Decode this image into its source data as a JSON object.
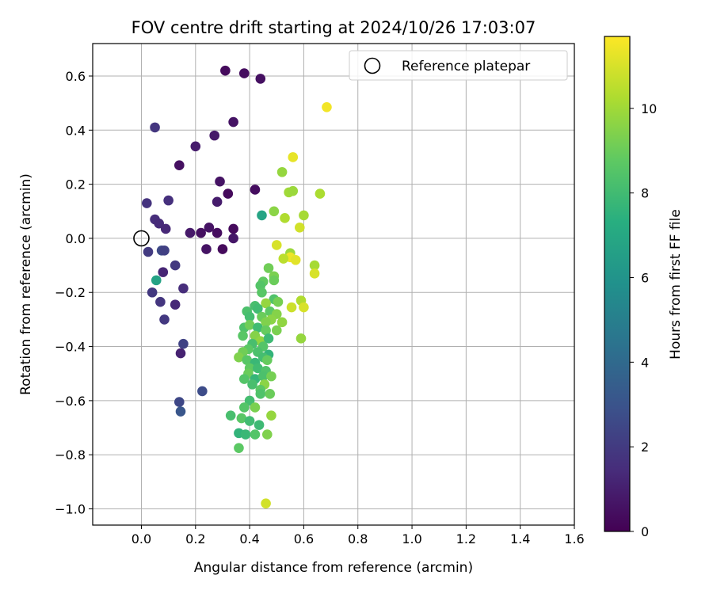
{
  "chart_data": {
    "type": "scatter",
    "title": "FOV centre drift starting at 2024/10/26 17:03:07",
    "xlabel": "Angular distance from reference (arcmin)",
    "ylabel": "Rotation from reference (arcmin)",
    "xlim": [
      -0.18,
      1.6
    ],
    "ylim": [
      -1.06,
      0.72
    ],
    "xticks": [
      "0.0",
      "0.2",
      "0.4",
      "0.6",
      "0.8",
      "1.0",
      "1.2",
      "1.4",
      "1.6"
    ],
    "xtick_values": [
      0,
      0.2,
      0.4,
      0.6,
      0.8,
      1.0,
      1.2,
      1.4,
      1.6
    ],
    "yticks": [
      "−1.0",
      "−0.8",
      "−0.6",
      "−0.4",
      "−0.2",
      "0.0",
      "0.2",
      "0.4",
      "0.6"
    ],
    "ytick_values": [
      -1.0,
      -0.8,
      -0.6,
      -0.4,
      -0.2,
      0.0,
      0.2,
      0.4,
      0.6
    ],
    "grid": true,
    "legend": {
      "placement": "top-right",
      "entries": [
        "Reference platepar"
      ]
    },
    "reference_point": {
      "x": 0,
      "y": 0
    },
    "colorbar": {
      "label": "Hours from first FF file",
      "colormap": "viridis",
      "range": [
        0,
        11.7
      ],
      "ticks": [
        "0",
        "2",
        "4",
        "6",
        "8",
        "10"
      ],
      "tick_values": [
        0,
        2,
        4,
        6,
        8,
        10
      ]
    },
    "points": [
      {
        "x": 0.31,
        "y": 0.62,
        "h": 0.3
      },
      {
        "x": 0.38,
        "y": 0.61,
        "h": 0.4
      },
      {
        "x": 0.44,
        "y": 0.59,
        "h": 0.5
      },
      {
        "x": 0.34,
        "y": 0.43,
        "h": 0.6
      },
      {
        "x": 0.27,
        "y": 0.38,
        "h": 0.8
      },
      {
        "x": 0.2,
        "y": 0.34,
        "h": 0.9
      },
      {
        "x": 0.14,
        "y": 0.27,
        "h": 0.5
      },
      {
        "x": 0.29,
        "y": 0.21,
        "h": 0.6
      },
      {
        "x": 0.42,
        "y": 0.18,
        "h": 0.4
      },
      {
        "x": 0.32,
        "y": 0.165,
        "h": 0.3
      },
      {
        "x": 0.28,
        "y": 0.135,
        "h": 0.9
      },
      {
        "x": 0.25,
        "y": 0.04,
        "h": 0.6
      },
      {
        "x": 0.34,
        "y": 0.035,
        "h": 0.3
      },
      {
        "x": 0.22,
        "y": 0.02,
        "h": 0.5
      },
      {
        "x": 0.18,
        "y": 0.02,
        "h": 0.8
      },
      {
        "x": 0.28,
        "y": 0.02,
        "h": 0.4
      },
      {
        "x": 0.34,
        "y": 0.0,
        "h": 0.7
      },
      {
        "x": 0.3,
        "y": -0.04,
        "h": 0.3
      },
      {
        "x": 0.24,
        "y": -0.04,
        "h": 0.6
      },
      {
        "x": 0.05,
        "y": 0.41,
        "h": 1.8
      },
      {
        "x": 0.1,
        "y": 0.14,
        "h": 1.6
      },
      {
        "x": 0.02,
        "y": 0.13,
        "h": 1.7
      },
      {
        "x": 0.05,
        "y": 0.07,
        "h": 1.5
      },
      {
        "x": 0.065,
        "y": 0.055,
        "h": 1.4
      },
      {
        "x": 0.09,
        "y": 0.035,
        "h": 1.3
      },
      {
        "x": 0.025,
        "y": -0.05,
        "h": 2.0
      },
      {
        "x": 0.075,
        "y": -0.045,
        "h": 2.6
      },
      {
        "x": 0.085,
        "y": -0.045,
        "h": 2.2
      },
      {
        "x": 0.125,
        "y": -0.1,
        "h": 1.9
      },
      {
        "x": 0.08,
        "y": -0.125,
        "h": 1.2
      },
      {
        "x": 0.055,
        "y": -0.155,
        "h": 6.7
      },
      {
        "x": 0.155,
        "y": -0.185,
        "h": 1.5
      },
      {
        "x": 0.04,
        "y": -0.2,
        "h": 1.9
      },
      {
        "x": 0.07,
        "y": -0.235,
        "h": 1.8
      },
      {
        "x": 0.125,
        "y": -0.245,
        "h": 1.3
      },
      {
        "x": 0.085,
        "y": -0.3,
        "h": 1.9
      },
      {
        "x": 0.155,
        "y": -0.39,
        "h": 2.3
      },
      {
        "x": 0.145,
        "y": -0.425,
        "h": 1.1
      },
      {
        "x": 0.14,
        "y": -0.605,
        "h": 2.5
      },
      {
        "x": 0.145,
        "y": -0.64,
        "h": 3.1
      },
      {
        "x": 0.225,
        "y": -0.565,
        "h": 2.7
      },
      {
        "x": 0.445,
        "y": 0.085,
        "h": 6.8
      },
      {
        "x": 0.49,
        "y": 0.1,
        "h": 9.6
      },
      {
        "x": 0.52,
        "y": 0.245,
        "h": 9.8
      },
      {
        "x": 0.56,
        "y": 0.3,
        "h": 11.3
      },
      {
        "x": 0.545,
        "y": 0.17,
        "h": 10.0
      },
      {
        "x": 0.56,
        "y": 0.175,
        "h": 9.9
      },
      {
        "x": 0.685,
        "y": 0.485,
        "h": 11.5
      },
      {
        "x": 0.66,
        "y": 0.165,
        "h": 10.2
      },
      {
        "x": 0.53,
        "y": 0.075,
        "h": 10.3
      },
      {
        "x": 0.6,
        "y": 0.085,
        "h": 10.1
      },
      {
        "x": 0.585,
        "y": 0.04,
        "h": 10.9
      },
      {
        "x": 0.5,
        "y": -0.025,
        "h": 11.0
      },
      {
        "x": 0.55,
        "y": -0.055,
        "h": 9.9
      },
      {
        "x": 0.55,
        "y": -0.07,
        "h": 11.4
      },
      {
        "x": 0.57,
        "y": -0.08,
        "h": 11.2
      },
      {
        "x": 0.525,
        "y": -0.075,
        "h": 10.5
      },
      {
        "x": 0.64,
        "y": -0.1,
        "h": 10.1
      },
      {
        "x": 0.64,
        "y": -0.13,
        "h": 11.0
      },
      {
        "x": 0.47,
        "y": -0.11,
        "h": 9.1
      },
      {
        "x": 0.49,
        "y": -0.14,
        "h": 9.3
      },
      {
        "x": 0.49,
        "y": -0.155,
        "h": 9.0
      },
      {
        "x": 0.45,
        "y": -0.16,
        "h": 8.8
      },
      {
        "x": 0.44,
        "y": -0.175,
        "h": 8.5
      },
      {
        "x": 0.445,
        "y": -0.2,
        "h": 8.6
      },
      {
        "x": 0.49,
        "y": -0.225,
        "h": 8.4
      },
      {
        "x": 0.505,
        "y": -0.235,
        "h": 9.2
      },
      {
        "x": 0.59,
        "y": -0.23,
        "h": 10.3
      },
      {
        "x": 0.6,
        "y": -0.255,
        "h": 11.0
      },
      {
        "x": 0.555,
        "y": -0.255,
        "h": 10.8
      },
      {
        "x": 0.46,
        "y": -0.24,
        "h": 9.8
      },
      {
        "x": 0.42,
        "y": -0.25,
        "h": 8.2
      },
      {
        "x": 0.43,
        "y": -0.26,
        "h": 8.0
      },
      {
        "x": 0.39,
        "y": -0.27,
        "h": 8.3
      },
      {
        "x": 0.475,
        "y": -0.27,
        "h": 8.7
      },
      {
        "x": 0.4,
        "y": -0.29,
        "h": 8.1
      },
      {
        "x": 0.445,
        "y": -0.29,
        "h": 9.0
      },
      {
        "x": 0.5,
        "y": -0.28,
        "h": 9.5
      },
      {
        "x": 0.52,
        "y": -0.31,
        "h": 9.7
      },
      {
        "x": 0.48,
        "y": -0.3,
        "h": 9.6
      },
      {
        "x": 0.46,
        "y": -0.31,
        "h": 9.4
      },
      {
        "x": 0.38,
        "y": -0.33,
        "h": 8.4
      },
      {
        "x": 0.4,
        "y": -0.32,
        "h": 9.1
      },
      {
        "x": 0.43,
        "y": -0.33,
        "h": 8.0
      },
      {
        "x": 0.46,
        "y": -0.34,
        "h": 8.9
      },
      {
        "x": 0.5,
        "y": -0.34,
        "h": 9.3
      },
      {
        "x": 0.375,
        "y": -0.36,
        "h": 8.6
      },
      {
        "x": 0.42,
        "y": -0.36,
        "h": 9.5
      },
      {
        "x": 0.44,
        "y": -0.38,
        "h": 9.7
      },
      {
        "x": 0.47,
        "y": -0.37,
        "h": 7.9
      },
      {
        "x": 0.41,
        "y": -0.39,
        "h": 8.2
      },
      {
        "x": 0.45,
        "y": -0.4,
        "h": 8.5
      },
      {
        "x": 0.59,
        "y": -0.37,
        "h": 9.8
      },
      {
        "x": 0.395,
        "y": -0.41,
        "h": 8.7
      },
      {
        "x": 0.43,
        "y": -0.42,
        "h": 8.3
      },
      {
        "x": 0.47,
        "y": -0.43,
        "h": 7.6
      },
      {
        "x": 0.375,
        "y": -0.42,
        "h": 9.1
      },
      {
        "x": 0.36,
        "y": -0.44,
        "h": 9.4
      },
      {
        "x": 0.39,
        "y": -0.45,
        "h": 8.6
      },
      {
        "x": 0.42,
        "y": -0.46,
        "h": 7.8
      },
      {
        "x": 0.45,
        "y": -0.44,
        "h": 8.1
      },
      {
        "x": 0.465,
        "y": -0.45,
        "h": 8.9
      },
      {
        "x": 0.4,
        "y": -0.48,
        "h": 8.8
      },
      {
        "x": 0.43,
        "y": -0.48,
        "h": 8.0
      },
      {
        "x": 0.46,
        "y": -0.49,
        "h": 8.4
      },
      {
        "x": 0.395,
        "y": -0.5,
        "h": 9.0
      },
      {
        "x": 0.38,
        "y": -0.52,
        "h": 8.5
      },
      {
        "x": 0.42,
        "y": -0.52,
        "h": 7.7
      },
      {
        "x": 0.45,
        "y": -0.51,
        "h": 8.3
      },
      {
        "x": 0.48,
        "y": -0.51,
        "h": 9.2
      },
      {
        "x": 0.41,
        "y": -0.54,
        "h": 8.2
      },
      {
        "x": 0.455,
        "y": -0.54,
        "h": 9.6
      },
      {
        "x": 0.44,
        "y": -0.56,
        "h": 8.7
      },
      {
        "x": 0.44,
        "y": -0.575,
        "h": 8.4
      },
      {
        "x": 0.475,
        "y": -0.575,
        "h": 9.0
      },
      {
        "x": 0.4,
        "y": -0.6,
        "h": 8.1
      },
      {
        "x": 0.38,
        "y": -0.625,
        "h": 8.5
      },
      {
        "x": 0.42,
        "y": -0.625,
        "h": 9.3
      },
      {
        "x": 0.33,
        "y": -0.655,
        "h": 8.2
      },
      {
        "x": 0.37,
        "y": -0.665,
        "h": 8.6
      },
      {
        "x": 0.4,
        "y": -0.675,
        "h": 8.0
      },
      {
        "x": 0.435,
        "y": -0.69,
        "h": 7.9
      },
      {
        "x": 0.48,
        "y": -0.655,
        "h": 9.8
      },
      {
        "x": 0.36,
        "y": -0.72,
        "h": 7.6
      },
      {
        "x": 0.385,
        "y": -0.725,
        "h": 7.8
      },
      {
        "x": 0.42,
        "y": -0.725,
        "h": 8.5
      },
      {
        "x": 0.465,
        "y": -0.725,
        "h": 9.4
      },
      {
        "x": 0.36,
        "y": -0.775,
        "h": 8.7
      },
      {
        "x": 0.46,
        "y": -0.98,
        "h": 10.9
      }
    ]
  }
}
